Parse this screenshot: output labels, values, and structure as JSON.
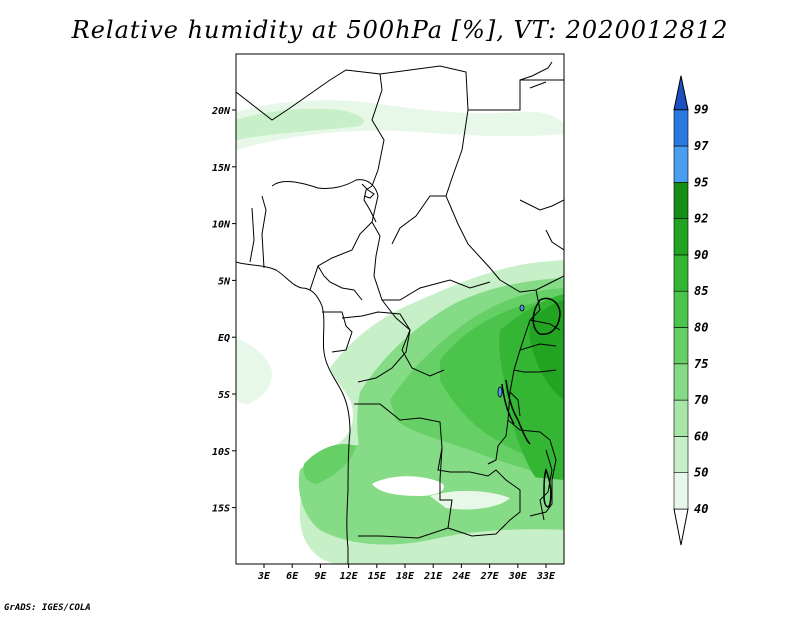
{
  "title": "Relative humidity at 500hPa [%], VT: 2020012812",
  "credit": "GrADS: IGES/COLA",
  "axes": {
    "lon_labels": [
      "3E",
      "6E",
      "9E",
      "12E",
      "15E",
      "18E",
      "21E",
      "24E",
      "27E",
      "30E",
      "33E"
    ],
    "lat_labels": [
      "20N",
      "15N",
      "10N",
      "5N",
      "EQ",
      "5S",
      "10S",
      "15S"
    ]
  },
  "colorbar": {
    "levels": [
      "40",
      "50",
      "60",
      "70",
      "75",
      "80",
      "85",
      "90",
      "92",
      "95",
      "97",
      "99"
    ],
    "colors": [
      "#e8f8e8",
      "#c8f0c8",
      "#a8e6a8",
      "#86db86",
      "#66cf66",
      "#4cc44c",
      "#34b634",
      "#22a322",
      "#148e14",
      "#4a9ef0",
      "#2a78e0",
      "#1c4fc0"
    ]
  }
}
